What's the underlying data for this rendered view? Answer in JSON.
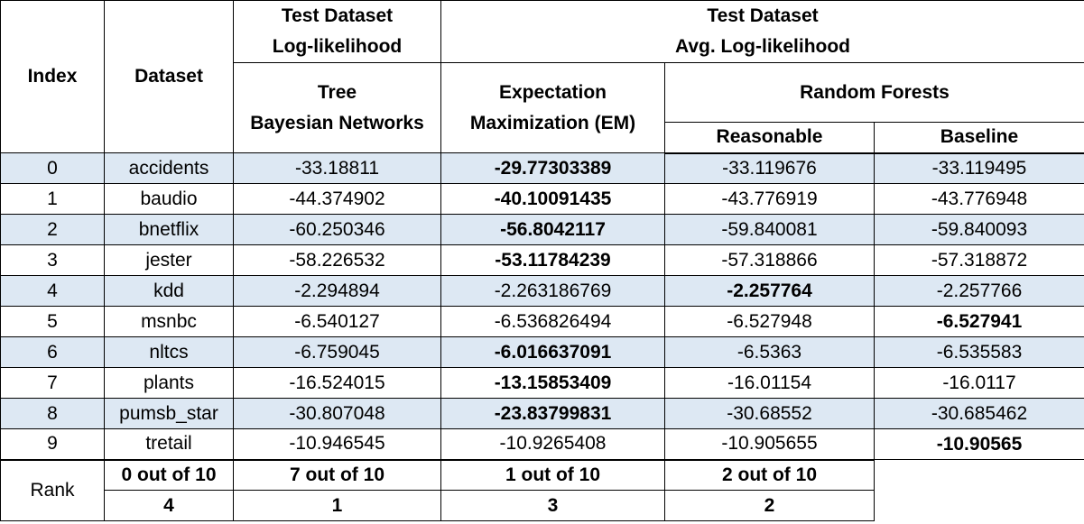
{
  "headers": {
    "index": "Index",
    "dataset": "Dataset",
    "loglik_group_line1": "Test Dataset",
    "loglik_group_line2": "Log-likelihood",
    "avg_group_line1": "Test Dataset",
    "avg_group_line2": "Avg. Log-likelihood",
    "tree_line1": "Tree",
    "tree_line2": "Bayesian Networks",
    "em_line1": "Expectation",
    "em_line2": "Maximization (EM)",
    "rf": "Random Forests",
    "rf_reasonable": "Reasonable",
    "rf_baseline": "Baseline"
  },
  "rows": [
    {
      "index": "0",
      "dataset": "accidents",
      "tree": "-33.18811",
      "em": "-29.77303389",
      "reasonable": "-33.119676",
      "baseline": "-33.119495",
      "best": "em"
    },
    {
      "index": "1",
      "dataset": "baudio",
      "tree": "-44.374902",
      "em": "-40.10091435",
      "reasonable": "-43.776919",
      "baseline": "-43.776948",
      "best": "em"
    },
    {
      "index": "2",
      "dataset": "bnetflix",
      "tree": "-60.250346",
      "em": "-56.8042117",
      "reasonable": "-59.840081",
      "baseline": "-59.840093",
      "best": "em"
    },
    {
      "index": "3",
      "dataset": "jester",
      "tree": "-58.226532",
      "em": "-53.11784239",
      "reasonable": "-57.318866",
      "baseline": "-57.318872",
      "best": "em"
    },
    {
      "index": "4",
      "dataset": "kdd",
      "tree": "-2.294894",
      "em": "-2.263186769",
      "reasonable": "-2.257764",
      "baseline": "-2.257766",
      "best": "reasonable"
    },
    {
      "index": "5",
      "dataset": "msnbc",
      "tree": "-6.540127",
      "em": "-6.536826494",
      "reasonable": "-6.527948",
      "baseline": "-6.527941",
      "best": "baseline"
    },
    {
      "index": "6",
      "dataset": "nltcs",
      "tree": "-6.759045",
      "em": "-6.016637091",
      "reasonable": "-6.5363",
      "baseline": "-6.535583",
      "best": "em"
    },
    {
      "index": "7",
      "dataset": "plants",
      "tree": "-16.524015",
      "em": "-13.15853409",
      "reasonable": "-16.01154",
      "baseline": "-16.0117",
      "best": "em"
    },
    {
      "index": "8",
      "dataset": "pumsb_star",
      "tree": "-30.807048",
      "em": "-23.83799831",
      "reasonable": "-30.68552",
      "baseline": "-30.685462",
      "best": "em"
    },
    {
      "index": "9",
      "dataset": "tretail",
      "tree": "-10.946545",
      "em": "-10.9265408",
      "reasonable": "-10.905655",
      "baseline": "-10.90565",
      "best": "baseline"
    }
  ],
  "rank": {
    "label": "Rank",
    "wins": {
      "tree": "0 out of 10",
      "em": "7 out of 10",
      "reasonable": "1 out of 10",
      "baseline": "2 out of 10"
    },
    "position": {
      "tree": "4",
      "em": "1",
      "reasonable": "3",
      "baseline": "2"
    }
  }
}
